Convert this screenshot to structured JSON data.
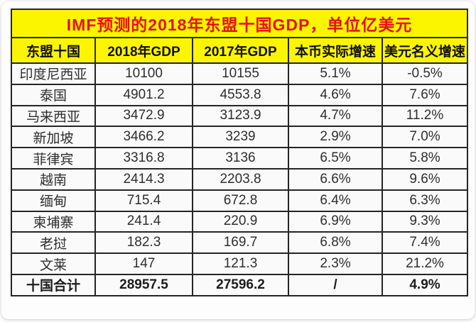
{
  "title": "IMF预测的2018年东盟十国GDP，单位亿美元",
  "colors": {
    "header_bg": "#FCF500",
    "title_text": "#E8100C",
    "border": "#252525",
    "cell_bg": "#FAFAFA",
    "cell_text": "#2E2E2E"
  },
  "table": {
    "headers": [
      "东盟十国",
      "2018年GDP",
      "2017年GDP",
      "本币实际增速",
      "美元名义增速"
    ],
    "rows": [
      {
        "cells": [
          "印度尼西亚",
          "10100",
          "10155",
          "5.1%",
          "-0.5%"
        ]
      },
      {
        "cells": [
          "泰国",
          "4901.2",
          "4553.8",
          "4.6%",
          "7.6%"
        ]
      },
      {
        "cells": [
          "马来西亚",
          "3472.9",
          "3123.9",
          "4.7%",
          "11.2%"
        ]
      },
      {
        "cells": [
          "新加坡",
          "3466.2",
          "3239",
          "2.9%",
          "7.0%"
        ]
      },
      {
        "cells": [
          "菲律宾",
          "3316.8",
          "3136",
          "6.5%",
          "5.8%"
        ]
      },
      {
        "cells": [
          "越南",
          "2414.3",
          "2203.8",
          "6.6%",
          "9.6%"
        ]
      },
      {
        "cells": [
          "缅甸",
          "715.4",
          "672.8",
          "6.4%",
          "6.3%"
        ]
      },
      {
        "cells": [
          "柬埔寨",
          "241.4",
          "220.9",
          "6.9%",
          "9.3%"
        ]
      },
      {
        "cells": [
          "老挝",
          "182.3",
          "169.7",
          "6.8%",
          "7.4%"
        ]
      },
      {
        "cells": [
          "文莱",
          "147",
          "121.3",
          "2.3%",
          "21.2%"
        ]
      },
      {
        "cells": [
          "十国合计",
          "28957.5",
          "27596.2",
          "/",
          "4.9%"
        ],
        "bold": true
      }
    ]
  },
  "chart_data": {
    "type": "table",
    "title": "IMF预测的2018年东盟十国GDP，单位亿美元",
    "columns": [
      "东盟十国",
      "2018年GDP",
      "2017年GDP",
      "本币实际增速",
      "美元名义增速"
    ],
    "categories": [
      "印度尼西亚",
      "泰国",
      "马来西亚",
      "新加坡",
      "菲律宾",
      "越南",
      "缅甸",
      "柬埔寨",
      "老挝",
      "文莱",
      "十国合计"
    ],
    "series": [
      {
        "name": "2018年GDP",
        "values": [
          10100,
          4901.2,
          3472.9,
          3466.2,
          3316.8,
          2414.3,
          715.4,
          241.4,
          182.3,
          147,
          28957.5
        ]
      },
      {
        "name": "2017年GDP",
        "values": [
          10155,
          4553.8,
          3123.9,
          3239,
          3136,
          2203.8,
          672.8,
          220.9,
          169.7,
          121.3,
          27596.2
        ]
      },
      {
        "name": "本币实际增速(%)",
        "values": [
          5.1,
          4.6,
          4.7,
          2.9,
          6.5,
          6.6,
          6.4,
          6.9,
          6.8,
          2.3,
          null
        ]
      },
      {
        "name": "美元名义增速(%)",
        "values": [
          -0.5,
          7.6,
          11.2,
          7.0,
          5.8,
          9.6,
          6.3,
          9.3,
          7.4,
          21.2,
          4.9
        ]
      }
    ]
  }
}
